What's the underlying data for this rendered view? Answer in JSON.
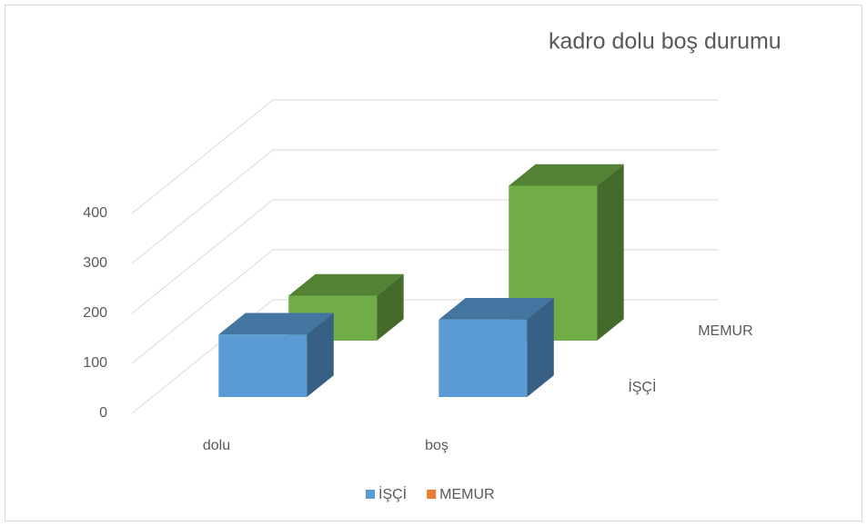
{
  "chart_data": {
    "type": "bar3d",
    "title": "kadro dolu boş durumu",
    "categories": [
      "dolu",
      "boş"
    ],
    "series": [
      {
        "name": "İŞÇİ",
        "color": "#5b9bd5",
        "bar_color": "#5b9bd5",
        "values": [
          125,
          155
        ]
      },
      {
        "name": "MEMUR",
        "color": "#ed7d31",
        "bar_color": "#70ad47",
        "values": [
          90,
          310
        ]
      }
    ],
    "ylim": [
      0,
      400
    ],
    "yticks": [
      0,
      100,
      200,
      300,
      400
    ],
    "grid": true,
    "legend": "bottom"
  }
}
